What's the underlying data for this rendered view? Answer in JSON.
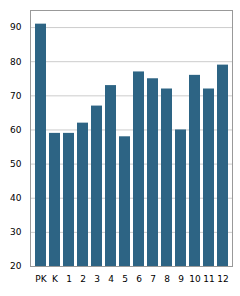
{
  "chart_data": {
    "type": "bar",
    "categories": [
      "PK",
      "K",
      "1",
      "2",
      "3",
      "4",
      "5",
      "6",
      "7",
      "8",
      "9",
      "10",
      "11",
      "12"
    ],
    "values": [
      91,
      59,
      59,
      62,
      67,
      73,
      58,
      77,
      75,
      72,
      60,
      76,
      72,
      79
    ],
    "color": "#2d6484",
    "ylim": [
      20,
      95
    ],
    "yticks": [
      20,
      30,
      40,
      50,
      60,
      70,
      80,
      90
    ],
    "grid": true
  }
}
